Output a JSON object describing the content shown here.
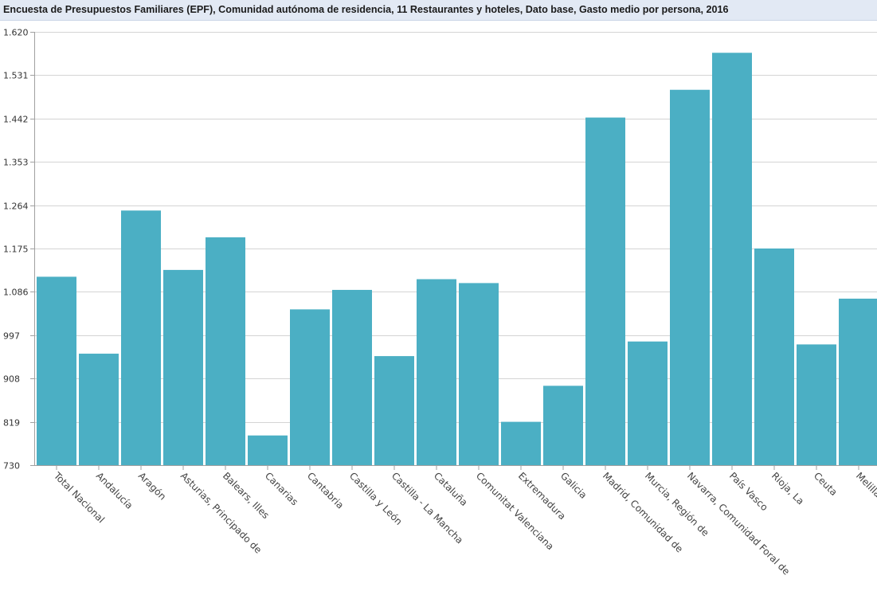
{
  "chart_data": {
    "type": "bar",
    "title": "Encuesta de Presupuestos Familiares (EPF), Comunidad autónoma de residencia, 11 Restaurantes y hoteles, Dato base, Gasto medio por persona, 2016",
    "xlabel": "",
    "ylabel": "",
    "ylim": [
      730,
      1620
    ],
    "yticks": [
      "730",
      "819",
      "908",
      "997",
      "1.086",
      "1.175",
      "1.264",
      "1.353",
      "1.442",
      "1.531",
      "1.620"
    ],
    "ytick_values": [
      730,
      819,
      908,
      997,
      1086,
      1175,
      1264,
      1353,
      1442,
      1531,
      1620
    ],
    "grid": true,
    "legend": "none",
    "bar_color": "#4bafc4",
    "categories": [
      "Total Nacional",
      "Andalucía",
      "Aragón",
      "Asturias, Principado de",
      "Balears, Illes",
      "Canarias",
      "Cantabria",
      "Castilla y León",
      "Castilla - La Mancha",
      "Cataluña",
      "Comunitat Valenciana",
      "Extremadura",
      "Galicia",
      "Madrid, Comunidad de",
      "Murcia, Región de",
      "Navarra, Comunidad Foral de",
      "País Vasco",
      "Rioja, La",
      "Ceuta",
      "Melilla"
    ],
    "values": [
      1117,
      959,
      1253,
      1131,
      1198,
      791,
      1050,
      1090,
      954,
      1112,
      1104,
      819,
      893,
      1444,
      984,
      1501,
      1577,
      1175,
      978,
      1072
    ]
  }
}
